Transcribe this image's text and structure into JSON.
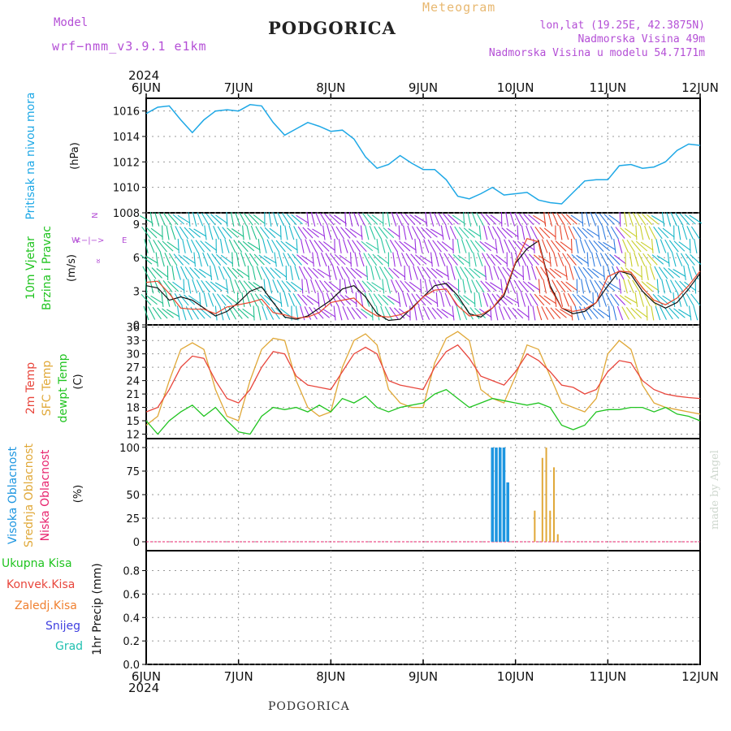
{
  "header": {
    "model_label": "Model",
    "model_name": "wrf−nmm_v3.9.1  e1km",
    "station": "PODGORICA",
    "meteogram": "Meteogram",
    "coords": "lon,lat (19.25E, 42.3875N)",
    "elevation": "Nadmorska Visina 49m",
    "model_elevation": "Nadmorska Visina u modelu 54.7171m"
  },
  "time_axis": {
    "year_top": "2024",
    "year_bottom": "2024",
    "ticks": [
      "6JUN",
      "7JUN",
      "8JUN",
      "9JUN",
      "10JUN",
      "11JUN",
      "12JUN"
    ]
  },
  "panels": {
    "pressure": {
      "ylabel": "Pritisak na nivou mora",
      "unit": "(hPa)",
      "yticks": [
        "1016",
        "1014",
        "1012",
        "1010",
        "1008"
      ]
    },
    "wind": {
      "label1": "10m Vjetar",
      "label2": "Brzina i Pravac",
      "unit": "(m/s)",
      "yticks": [
        "9",
        "6",
        "3",
        "0"
      ],
      "compass": {
        "n": "N",
        "e": "E",
        "w": "W",
        "s": "S",
        "arrow": "<−|−>",
        "v": "^",
        "sym": "∝"
      }
    },
    "temp": {
      "label1": "2m Temp",
      "label2": "SFC Temp",
      "label3": "dewpt Temp",
      "unit": "(C)",
      "yticks": [
        "36",
        "33",
        "30",
        "27",
        "24",
        "21",
        "18",
        "15",
        "12"
      ]
    },
    "cloud": {
      "label1": "Visoka Oblacnost",
      "label2": "Srednja Oblacnost",
      "label3": "Niska Oblacnost",
      "unit": "(%)",
      "yticks": [
        "100",
        "75",
        "50",
        "25",
        "0"
      ]
    },
    "precip": {
      "legend": [
        "Ukupna Kisa",
        "Konvek.Kisa",
        "Zaledj.Kisa",
        "Snijeg",
        "Grad"
      ],
      "ylabel": "1hr Precip (mm)",
      "yticks": [
        "0.8",
        "0.6",
        "0.4",
        "0.2",
        "0.0"
      ]
    }
  },
  "footer": {
    "station": "PODGORICA",
    "credit": "made by Angel"
  },
  "colors": {
    "pressure": "#1ea8e6",
    "temp2m": "#e8463c",
    "sfc": "#e0a838",
    "dewpt": "#21c421",
    "cloud_high": "#1e96e0",
    "cloud_mid": "#e0a838",
    "cloud_low": "#e8246e",
    "leg_total": "#21c421",
    "leg_conv": "#e8463c",
    "leg_frz": "#f08030",
    "leg_snow": "#4040e0",
    "leg_hail": "#20c0b0"
  },
  "chart_data": [
    {
      "type": "line",
      "title": "Pritisak na nivou mora",
      "ylabel": "(hPa)",
      "x_range": [
        "2024-06-06T00",
        "2024-06-12T00"
      ],
      "ylim": [
        1008,
        1017
      ],
      "series": [
        {
          "name": "",
          "x_hours": [
            0,
            3,
            6,
            9,
            12,
            15,
            18,
            21,
            24,
            27,
            30,
            33,
            36,
            39,
            42,
            45,
            48,
            51,
            54,
            57,
            60,
            63,
            66,
            69,
            72,
            75,
            78,
            81,
            84,
            87,
            90,
            93,
            96,
            99,
            102,
            105,
            108,
            111,
            114,
            117,
            120,
            123,
            126,
            129,
            132,
            135,
            138,
            141,
            144
          ],
          "values": [
            1015.8,
            1016.3,
            1016.4,
            1015.3,
            1014.3,
            1015.3,
            1016.0,
            1016.1,
            1016.0,
            1016.5,
            1016.4,
            1015.1,
            1014.1,
            1014.6,
            1015.1,
            1014.8,
            1014.4,
            1014.5,
            1013.8,
            1012.4,
            1011.5,
            1011.8,
            1012.5,
            1011.9,
            1011.4,
            1011.4,
            1010.6,
            1009.3,
            1009.1,
            1009.5,
            1010.0,
            1009.4,
            1009.5,
            1009.6,
            1009.0,
            1008.8,
            1008.7,
            1009.6,
            1010.5,
            1010.6,
            1010.6,
            1011.7,
            1011.8,
            1011.5,
            1011.6,
            1012.0,
            1012.9,
            1013.4,
            1013.3
          ]
        }
      ]
    },
    {
      "type": "line",
      "title": "10m Vjetar Brzina i Pravac",
      "ylabel": "(m/s)",
      "ylim": [
        0,
        10
      ],
      "series": [
        {
          "name": "",
          "x_hours": [
            0,
            3,
            6,
            9,
            12,
            15,
            18,
            21,
            24,
            27,
            30,
            33,
            36,
            39,
            42,
            45,
            48,
            51,
            54,
            57,
            60,
            63,
            66,
            69,
            72,
            75,
            78,
            81,
            84,
            87,
            90,
            93,
            96,
            99,
            102,
            105,
            108,
            111,
            114,
            117,
            120,
            123,
            126,
            129,
            132,
            135,
            138,
            141,
            144
          ],
          "values": [
            3.5,
            3.3,
            2.2,
            2.5,
            2.2,
            1.5,
            0.8,
            1.2,
            2.0,
            3.0,
            3.4,
            2.0,
            0.7,
            0.5,
            0.8,
            1.5,
            2.2,
            3.2,
            3.5,
            2.5,
            1.0,
            0.4,
            0.5,
            1.5,
            2.5,
            3.5,
            3.7,
            2.6,
            1.0,
            0.7,
            1.5,
            2.6,
            5.5,
            6.8,
            7.5,
            3.5,
            1.5,
            1.0,
            1.2,
            2.0,
            3.5,
            4.8,
            4.5,
            3.0,
            2.0,
            1.5,
            2.0,
            3.2,
            4.6
          ]
        },
        {
          "name": "",
          "x_hours": [
            0,
            3,
            6,
            9,
            12,
            15,
            18,
            21,
            24,
            27,
            30,
            33,
            36,
            39,
            42,
            45,
            48,
            51,
            54,
            57,
            60,
            63,
            66,
            69,
            72,
            75,
            78,
            81,
            84,
            87,
            90,
            93,
            96,
            99,
            102,
            105,
            108,
            111,
            114,
            117,
            120,
            123,
            126,
            129,
            132,
            135,
            138,
            141,
            144
          ],
          "values": [
            3.8,
            3.9,
            2.8,
            1.5,
            1.4,
            1.4,
            1.0,
            1.6,
            1.8,
            2.0,
            2.3,
            1.1,
            0.9,
            0.6,
            0.7,
            1.1,
            2.0,
            2.2,
            2.4,
            1.4,
            0.8,
            0.7,
            0.9,
            1.4,
            2.5,
            3.1,
            3.2,
            1.7,
            0.8,
            0.9,
            1.5,
            2.8,
            5.6,
            7.7,
            7.4,
            3.3,
            1.5,
            1.2,
            1.4,
            2.0,
            4.3,
            4.8,
            4.7,
            3.3,
            2.2,
            1.8,
            2.4,
            3.5,
            4.8
          ]
        }
      ]
    },
    {
      "type": "line",
      "title": "2m Temp / SFC Temp / dewpt Temp",
      "ylabel": "(C)",
      "ylim": [
        11,
        36.5
      ],
      "series": [
        {
          "name": "2m Temp",
          "x_hours": [
            0,
            3,
            6,
            9,
            12,
            15,
            18,
            21,
            24,
            27,
            30,
            33,
            36,
            39,
            42,
            45,
            48,
            51,
            54,
            57,
            60,
            63,
            66,
            69,
            72,
            75,
            78,
            81,
            84,
            87,
            90,
            93,
            96,
            99,
            102,
            105,
            108,
            111,
            114,
            117,
            120,
            123,
            126,
            129,
            132,
            135,
            138,
            141,
            144
          ],
          "values": [
            17,
            18,
            22,
            27,
            29.5,
            29,
            24,
            20,
            19,
            22,
            27,
            30.5,
            30,
            25,
            23,
            22.5,
            22,
            26,
            30,
            31.5,
            30,
            24,
            23,
            22.5,
            22,
            27,
            30.5,
            32,
            29,
            25,
            24,
            23,
            26,
            30,
            28.5,
            26,
            23,
            22.5,
            21,
            22,
            26,
            28.5,
            28,
            24,
            22,
            21,
            20.5,
            20.2,
            20
          ]
        },
        {
          "name": "SFC Temp",
          "x_hours": [
            0,
            3,
            6,
            9,
            12,
            15,
            18,
            21,
            24,
            27,
            30,
            33,
            36,
            39,
            42,
            45,
            48,
            51,
            54,
            57,
            60,
            63,
            66,
            69,
            72,
            75,
            78,
            81,
            84,
            87,
            90,
            93,
            96,
            99,
            102,
            105,
            108,
            111,
            114,
            117,
            120,
            123,
            126,
            129,
            132,
            135,
            138,
            141,
            144
          ],
          "values": [
            14,
            16,
            24,
            31,
            32.5,
            31,
            22,
            16,
            15,
            24,
            31,
            33.5,
            33,
            24,
            18,
            16,
            17,
            27,
            33,
            34.5,
            32,
            22,
            19,
            18,
            18,
            28,
            33.5,
            35,
            33,
            22,
            20,
            19,
            25,
            32,
            31,
            25,
            19,
            18,
            17,
            20,
            30,
            33,
            31,
            23,
            19,
            18,
            17.5,
            17,
            16.5
          ]
        },
        {
          "name": "dewpt Temp",
          "x_hours": [
            0,
            3,
            6,
            9,
            12,
            15,
            18,
            21,
            24,
            27,
            30,
            33,
            36,
            39,
            42,
            45,
            48,
            51,
            54,
            57,
            60,
            63,
            66,
            69,
            72,
            75,
            78,
            81,
            84,
            87,
            90,
            93,
            96,
            99,
            102,
            105,
            108,
            111,
            114,
            117,
            120,
            123,
            126,
            129,
            132,
            135,
            138,
            141,
            144
          ],
          "values": [
            15,
            12,
            15,
            17,
            18.5,
            16,
            18,
            15,
            12.5,
            12,
            16,
            18,
            17.5,
            18,
            17,
            18.5,
            17,
            20,
            19,
            20.5,
            18,
            17,
            18,
            18.5,
            19,
            21,
            22,
            20,
            18,
            19,
            20,
            19.5,
            19,
            18.5,
            19,
            18,
            14,
            13,
            14,
            17,
            17.5,
            17.5,
            18,
            18,
            17,
            18,
            16.5,
            16,
            15
          ]
        }
      ]
    },
    {
      "type": "bar",
      "title": "Oblacnost",
      "ylabel": "(%)",
      "ylim": [
        0,
        100
      ],
      "series": [
        {
          "name": "Visoka Oblacnost",
          "x_hours": [
            90,
            91,
            92,
            93,
            94
          ],
          "values": [
            100,
            100,
            100,
            100,
            63
          ]
        },
        {
          "name": "Srednja Oblacnost",
          "x_hours": [
            101,
            103,
            104,
            105,
            106,
            107
          ],
          "values": [
            33,
            89,
            100,
            33,
            79,
            8
          ]
        },
        {
          "name": "Niska Oblacnost",
          "x_hours": [],
          "values": []
        }
      ]
    },
    {
      "type": "bar",
      "title": "1hr Precip",
      "ylabel": "1hr Precip (mm)",
      "ylim": [
        0,
        1
      ],
      "series": [
        {
          "name": "Ukupna Kisa",
          "x_hours": [],
          "values": []
        }
      ]
    }
  ]
}
